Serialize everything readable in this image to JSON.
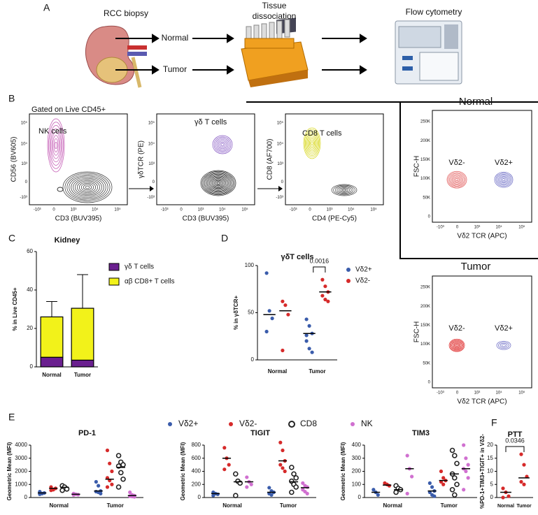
{
  "panel_labels": [
    "A",
    "B",
    "C",
    "D",
    "E",
    "F"
  ],
  "workflow": {
    "biopsy": "RCC biopsy",
    "normal": "Normal",
    "tumor": "Tumor",
    "dissociation": [
      "Tissue",
      "dissociation"
    ],
    "flow": "Flow cytometry"
  },
  "flow": {
    "gate": "Gated on Live CD45+",
    "plots": [
      {
        "x_label": "CD3 (BUV395)",
        "y_label": "CD56 (BV605)",
        "population": "NK cells"
      },
      {
        "x_label": "CD3 (BUV395)",
        "y_label": "γδTCR (PE)",
        "population": "γδ T cells"
      },
      {
        "x_label": "CD4 (PE-Cy5)",
        "y_label": "CD8 (AF700)",
        "population": "CD8 T cells"
      }
    ],
    "log_ticks": [
      "-10³",
      "0",
      "10³",
      "10⁴",
      "10⁵"
    ],
    "fsc_ticks": [
      "0",
      "50K",
      "100K",
      "150K",
      "200K",
      "250K"
    ],
    "vd2_x_label": "Vδ2 TCR (APC)",
    "fsc_label": "FSC-H",
    "normal": "Normal",
    "tumor": "Tumor",
    "neg": "Vδ2-",
    "pos": "Vδ2+"
  },
  "chart_data": [
    {
      "type": "stacked_bar",
      "title": "Kidney",
      "y_label": "% in Live CD45+",
      "categories": [
        "Normal",
        "Tumor"
      ],
      "series": [
        {
          "name": "γδ T cells",
          "color": "#6a1f8f",
          "values": [
            5,
            3.5
          ],
          "errors": [
            2.5,
            2
          ]
        },
        {
          "name": "αβ CD8+ T cells",
          "color": "#f2f21a",
          "values": [
            21,
            27
          ],
          "errors": [
            8,
            17.5
          ]
        }
      ],
      "ylim": [
        0,
        60
      ],
      "yticks": [
        0,
        20,
        40,
        60
      ]
    },
    {
      "type": "strip",
      "title": "γδT cells",
      "y_label": "% in γδTCR+",
      "categories": [
        "Normal",
        "Tumor"
      ],
      "annotation": "0.0016",
      "series": [
        {
          "name": "Vδ2+",
          "color": "#3a5cab",
          "values": [
            [
              92,
              52,
              44,
              30
            ],
            [
              43,
              36,
              28,
              20,
              12,
              8,
              26
            ]
          ],
          "medians": [
            48,
            28
          ]
        },
        {
          "name": "Vδ2-",
          "color": "#d62a2a",
          "values": [
            [
              62,
              58,
              48,
              10
            ],
            [
              85,
              78,
              72,
              68,
              64,
              62
            ]
          ],
          "medians": [
            52,
            72
          ]
        }
      ],
      "ylim": [
        0,
        100
      ],
      "yticks": [
        0,
        50,
        100
      ]
    },
    {
      "type": "strip",
      "title": "PD-1",
      "y_label": "Geometric Mean (MFI)",
      "categories": [
        "Normal",
        "Tumor"
      ],
      "series": [
        {
          "name": "Vδ2+",
          "color": "#3a5cab",
          "values": [
            [
              450,
              300,
              350,
              250
            ],
            [
              1200,
              900,
              500,
              450,
              400,
              300
            ]
          ],
          "medians": [
            350,
            500
          ]
        },
        {
          "name": "Vδ2-",
          "color": "#d62a2a",
          "values": [
            [
              800,
              600,
              700,
              550
            ],
            [
              3600,
              2600,
              2000,
              1500,
              1300,
              1000,
              800
            ]
          ],
          "medians": [
            700,
            1400
          ]
        },
        {
          "name": "CD8",
          "color": "#222222",
          "open": true,
          "values": [
            [
              900,
              800,
              650,
              550
            ],
            [
              3200,
              2700,
              2500,
              2400,
              1900,
              1400,
              800
            ]
          ],
          "medians": [
            780,
            2300
          ]
        },
        {
          "name": "NK",
          "color": "#d070d0",
          "values": [
            [
              300,
              250,
              220,
              200
            ],
            [
              400,
              200,
              150,
              100,
              80,
              50
            ]
          ],
          "medians": [
            250,
            150
          ]
        }
      ],
      "ylim": [
        0,
        4000
      ],
      "yticks": [
        0,
        1000,
        2000,
        3000,
        4000
      ]
    },
    {
      "type": "strip",
      "title": "TIGIT",
      "y_label": "Geometric Mean (MFI)",
      "categories": [
        "Normal",
        "Tumor"
      ],
      "series": [
        {
          "color": "#3a5cab",
          "values": [
            [
              80,
              60,
              50,
              30
            ],
            [
              150,
              100,
              80,
              60,
              40
            ]
          ],
          "medians": [
            60,
            80
          ]
        },
        {
          "color": "#d62a2a",
          "values": [
            [
              760,
              600,
              500,
              430
            ],
            [
              840,
              720,
              560,
              500,
              450,
              400
            ]
          ],
          "medians": [
            600,
            560
          ]
        },
        {
          "color": "#222222",
          "open": true,
          "values": [
            [
              360,
              250,
              220,
              30
            ],
            [
              460,
              360,
              300,
              250,
              200,
              160,
              80
            ]
          ],
          "medians": [
            240,
            240
          ]
        },
        {
          "color": "#d070d0",
          "values": [
            [
              310,
              240,
              200,
              160
            ],
            [
              220,
              180,
              160,
              120,
              90,
              60
            ]
          ],
          "medians": [
            240,
            150
          ]
        }
      ],
      "ylim": [
        0,
        800
      ],
      "yticks": [
        0,
        200,
        400,
        600,
        800
      ]
    },
    {
      "type": "strip",
      "title": "TIM3",
      "y_label": "Geometric Mean (MFI)",
      "categories": [
        "Normal",
        "Tumor"
      ],
      "series": [
        {
          "color": "#3a5cab",
          "values": [
            [
              60,
              40,
              20
            ],
            [
              110,
              80,
              50,
              40,
              20,
              10
            ]
          ],
          "medians": [
            40,
            50
          ]
        },
        {
          "color": "#d62a2a",
          "values": [
            [
              110,
              100,
              90
            ],
            [
              200,
              150,
              130,
              120,
              100
            ]
          ],
          "medians": [
            95,
            130
          ]
        },
        {
          "color": "#222222",
          "open": true,
          "values": [
            [
              90,
              70,
              60,
              40
            ],
            [
              360,
              320,
              260,
              180,
              150,
              100,
              60,
              20
            ]
          ],
          "medians": [
            60,
            180
          ]
        },
        {
          "color": "#d070d0",
          "values": [
            [
              320,
              220,
              160,
              30
            ],
            [
              400,
              300,
              250,
              220,
              200,
              150,
              60
            ]
          ],
          "medians": [
            220,
            220
          ]
        }
      ],
      "ylim": [
        0,
        400
      ],
      "yticks": [
        0,
        100,
        200,
        300,
        400
      ]
    },
    {
      "type": "strip",
      "title": "PTT",
      "y_label": "%PD-1+TIM3+TIGIT+ in Vδ2-",
      "categories": [
        "Normal",
        "Tumor"
      ],
      "annotation": "0.0346",
      "series": [
        {
          "color": "#d62a2a",
          "values": [
            [
              3.5,
              2,
              0.5,
              0
            ],
            [
              16.5,
              12.5,
              8,
              6,
              5
            ]
          ],
          "medians": [
            2,
            7.5
          ]
        }
      ],
      "ylim": [
        0,
        20
      ],
      "yticks": [
        0,
        5,
        10,
        15,
        20
      ]
    }
  ]
}
